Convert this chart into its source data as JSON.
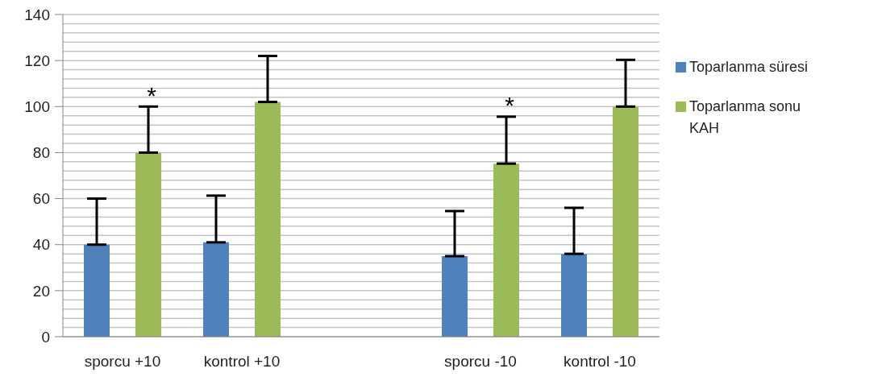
{
  "chart_data": {
    "type": "bar",
    "categories": [
      "sporcu +10",
      "kontrol +10",
      null,
      "sporcu -10",
      "kontrol -10"
    ],
    "series": [
      {
        "name": "Toparlanma süresi",
        "color": "#4f81bd",
        "values": [
          40,
          41,
          null,
          35,
          36
        ],
        "errors": [
          [
            40,
            60
          ],
          [
            41,
            61.3
          ],
          null,
          [
            35,
            54.6
          ],
          [
            36,
            56
          ]
        ]
      },
      {
        "name": "Toparlanma sonu KAH",
        "color": "#9bbb59",
        "values": [
          80,
          102,
          null,
          75.2,
          100
        ],
        "errors": [
          [
            80,
            100
          ],
          [
            102,
            122
          ],
          null,
          [
            75.2,
            95.6
          ],
          [
            100,
            120.3
          ]
        ],
        "value_labels": [
          "*",
          null,
          null,
          "*",
          null
        ]
      }
    ],
    "ylim": [
      0,
      140
    ],
    "yticks": [
      0,
      {
        "value": 4,
        "label": null
      },
      {
        "value": 8,
        "label": null
      },
      {
        "value": 12,
        "label": null
      },
      {
        "value": 16,
        "label": null
      },
      20,
      {
        "value": 24,
        "label": null
      },
      {
        "value": 28,
        "label": null
      },
      {
        "value": 32,
        "label": null
      },
      {
        "value": 36,
        "label": null
      },
      40,
      {
        "value": 44,
        "label": null
      },
      {
        "value": 48,
        "label": null
      },
      {
        "value": 52,
        "label": null
      },
      {
        "value": 56,
        "label": null
      },
      60,
      {
        "value": 64,
        "label": null
      },
      {
        "value": 68,
        "label": null
      },
      {
        "value": 72,
        "label": null
      },
      {
        "value": 76,
        "label": null
      },
      80,
      {
        "value": 84,
        "label": null
      },
      {
        "value": 88,
        "label": null
      },
      {
        "value": 92,
        "label": null
      },
      {
        "value": 96,
        "label": null
      },
      100,
      {
        "value": 104,
        "label": null
      },
      {
        "value": 108,
        "label": null
      },
      {
        "value": 112,
        "label": null
      },
      {
        "value": 116,
        "label": null
      },
      120,
      {
        "value": 124,
        "label": null
      },
      {
        "value": 128,
        "label": null
      },
      {
        "value": 132,
        "label": null
      },
      {
        "value": 136,
        "label": null
      },
      140
    ],
    "grid": "y",
    "legend": "right"
  }
}
